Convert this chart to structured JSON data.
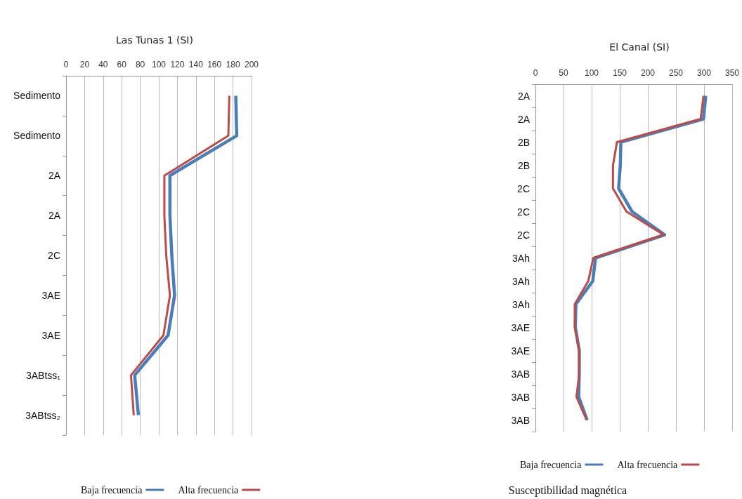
{
  "chart_data": [
    {
      "type": "line",
      "title": "Las Tunas 1 (SI)",
      "orientation": "horizontal",
      "categories": [
        "Sedimento",
        "Sedimento",
        "2A",
        "2A",
        "2C",
        "3AE",
        "3AE",
        "3ABtss₁",
        "3ABtss₂"
      ],
      "series": [
        {
          "name": "Baja frecuencia",
          "color": "#4a7ebb",
          "values": [
            183,
            184,
            112,
            112,
            114,
            117,
            110,
            74,
            78
          ]
        },
        {
          "name": "Alta frecuencia",
          "color": "#be4b48",
          "values": [
            176,
            175,
            106,
            106,
            108,
            112,
            105,
            70,
            73
          ]
        }
      ],
      "xlim": [
        0,
        200
      ],
      "xticks": [
        0,
        20,
        40,
        60,
        80,
        100,
        120,
        140,
        160,
        180,
        200
      ],
      "grid": "x",
      "legend": "bottom",
      "marker": "none"
    },
    {
      "type": "line",
      "title": "El Canal (SI)",
      "orientation": "horizontal",
      "categories": [
        "2A",
        "2A",
        "2B",
        "2B",
        "2C",
        "2C",
        "2C",
        "3Ah",
        "3Ah",
        "3Ah",
        "3AE",
        "3AE",
        "3AB",
        "3AB",
        "3AB"
      ],
      "series": [
        {
          "name": "Baja frecuencia",
          "color": "#4a7ebb",
          "values": [
            303,
            299,
            152,
            151,
            148,
            172,
            230,
            107,
            102,
            72,
            71,
            78,
            78,
            77,
            92
          ]
        },
        {
          "name": "Alta frecuencia",
          "color": "#be4b48",
          "values": [
            299,
            294,
            145,
            138,
            138,
            162,
            228,
            103,
            94,
            70,
            70,
            78,
            78,
            73,
            91
          ]
        }
      ],
      "xlim": [
        0,
        350
      ],
      "xticks": [
        0,
        50,
        100,
        150,
        200,
        250,
        300,
        350
      ],
      "grid": "x",
      "legend": "bottom",
      "marker": "none",
      "annotations": [
        "Susceptibilidad magnética"
      ]
    }
  ]
}
